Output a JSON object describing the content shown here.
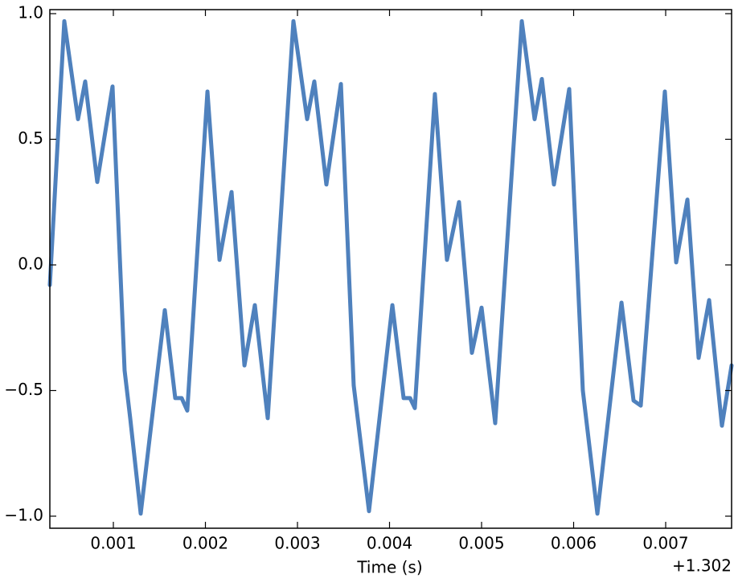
{
  "chart_data": {
    "type": "line",
    "xlabel": "Time (s)",
    "x_offset_label": "+1.302",
    "color": "#4f81bd",
    "x": [
      0.00031,
      0.000467,
      0.000616,
      0.000694,
      0.000825,
      0.000991,
      0.001122,
      0.001183,
      0.001297,
      0.001559,
      0.001672,
      0.001742,
      0.001803,
      0.002022,
      0.002153,
      0.002284,
      0.002424,
      0.002537,
      0.002677,
      0.002956,
      0.003105,
      0.003183,
      0.003314,
      0.003472,
      0.003611,
      0.003777,
      0.004031,
      0.004153,
      0.004223,
      0.004275,
      0.004493,
      0.004624,
      0.004755,
      0.004895,
      0.005,
      0.005148,
      0.005437,
      0.005576,
      0.005655,
      0.005786,
      0.005952,
      0.0061,
      0.006258,
      0.00652,
      0.006651,
      0.006729,
      0.006991,
      0.007114,
      0.007236,
      0.007358,
      0.007472,
      0.007611,
      0.007716
    ],
    "values": [
      -0.08,
      0.97,
      0.58,
      0.73,
      0.33,
      0.71,
      -0.42,
      -0.61,
      -0.99,
      -0.18,
      -0.53,
      -0.53,
      -0.58,
      0.69,
      0.02,
      0.29,
      -0.4,
      -0.16,
      -0.61,
      0.97,
      0.58,
      0.73,
      0.32,
      0.72,
      -0.48,
      -0.98,
      -0.16,
      -0.53,
      -0.53,
      -0.57,
      0.68,
      0.02,
      0.25,
      -0.35,
      -0.17,
      -0.63,
      0.97,
      0.58,
      0.74,
      0.32,
      0.7,
      -0.5,
      -0.99,
      -0.15,
      -0.54,
      -0.56,
      0.69,
      0.01,
      0.26,
      -0.37,
      -0.14,
      -0.64,
      -0.4
    ],
    "xlim": [
      0.00031,
      0.007716
    ],
    "ylim": [
      -1.048,
      1.016
    ],
    "xticks": [
      0.001,
      0.002,
      0.003,
      0.004,
      0.005,
      0.006,
      0.007
    ],
    "yticks": [
      {
        "value": 1,
        "label": "1.0"
      },
      0.5,
      {
        "value": 0,
        "label": "0.0"
      },
      {
        "value": -0.5,
        "label": "−0.5"
      },
      {
        "value": -1,
        "label": "−1.0"
      }
    ]
  }
}
